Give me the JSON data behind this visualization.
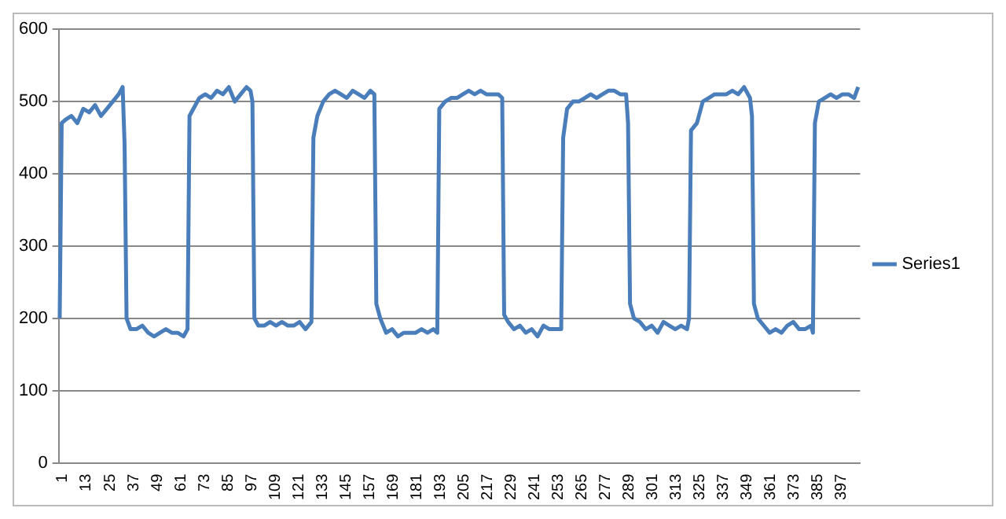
{
  "chart_data": {
    "type": "line",
    "x": [
      1,
      2,
      4,
      7,
      10,
      13,
      16,
      19,
      22,
      25,
      28,
      31,
      33,
      34,
      35,
      37,
      40,
      43,
      46,
      49,
      52,
      55,
      58,
      61,
      64,
      66,
      67,
      69,
      72,
      75,
      78,
      81,
      84,
      87,
      90,
      93,
      96,
      98,
      99,
      100,
      102,
      105,
      108,
      111,
      114,
      117,
      120,
      123,
      126,
      129,
      130,
      132,
      135,
      138,
      141,
      144,
      147,
      150,
      153,
      156,
      159,
      161,
      162,
      164,
      167,
      170,
      173,
      176,
      179,
      182,
      185,
      188,
      191,
      193,
      194,
      197,
      200,
      203,
      206,
      209,
      212,
      215,
      218,
      221,
      224,
      226,
      227,
      229,
      232,
      235,
      238,
      241,
      244,
      247,
      250,
      253,
      256,
      257,
      259,
      262,
      265,
      268,
      271,
      274,
      277,
      280,
      283,
      286,
      289,
      290,
      291,
      293,
      296,
      299,
      302,
      305,
      308,
      311,
      314,
      317,
      320,
      321,
      322,
      325,
      328,
      331,
      334,
      337,
      340,
      343,
      346,
      349,
      352,
      353,
      354,
      356,
      359,
      362,
      365,
      368,
      371,
      374,
      377,
      380,
      383,
      384,
      385,
      387,
      390,
      393,
      396,
      399,
      402,
      405,
      407
    ],
    "series": [
      {
        "name": "Series1",
        "color": "#4a7ebb",
        "values": [
          200,
          470,
          475,
          480,
          470,
          490,
          485,
          495,
          480,
          490,
          500,
          510,
          520,
          440,
          200,
          185,
          185,
          190,
          180,
          175,
          180,
          185,
          180,
          180,
          175,
          185,
          480,
          490,
          505,
          510,
          505,
          515,
          510,
          520,
          500,
          510,
          520,
          515,
          500,
          200,
          190,
          190,
          195,
          190,
          195,
          190,
          190,
          195,
          185,
          195,
          450,
          480,
          500,
          510,
          515,
          510,
          505,
          515,
          510,
          505,
          515,
          510,
          220,
          200,
          180,
          185,
          175,
          180,
          180,
          180,
          185,
          180,
          185,
          180,
          490,
          500,
          505,
          505,
          510,
          515,
          510,
          515,
          510,
          510,
          510,
          505,
          205,
          195,
          185,
          190,
          180,
          185,
          175,
          190,
          185,
          185,
          185,
          450,
          490,
          500,
          500,
          505,
          510,
          505,
          510,
          515,
          515,
          510,
          510,
          470,
          220,
          200,
          195,
          185,
          190,
          180,
          195,
          190,
          185,
          190,
          185,
          200,
          460,
          470,
          500,
          505,
          510,
          510,
          510,
          515,
          510,
          520,
          505,
          480,
          220,
          200,
          190,
          180,
          185,
          180,
          190,
          195,
          185,
          185,
          190,
          180,
          470,
          500,
          505,
          510,
          505,
          510,
          510,
          505,
          520
        ]
      }
    ],
    "xlim": [
      0.5,
      408
    ],
    "xticks": [
      1,
      13,
      25,
      37,
      49,
      61,
      73,
      85,
      97,
      109,
      121,
      133,
      145,
      157,
      169,
      181,
      193,
      205,
      217,
      229,
      241,
      253,
      265,
      277,
      289,
      301,
      313,
      325,
      337,
      349,
      361,
      373,
      385,
      397
    ],
    "ylim": [
      0,
      600
    ],
    "yticks": [
      0,
      100,
      200,
      300,
      400,
      500,
      600
    ],
    "grid": "y",
    "legend": "right",
    "line_style": "solid",
    "marker": "none"
  }
}
